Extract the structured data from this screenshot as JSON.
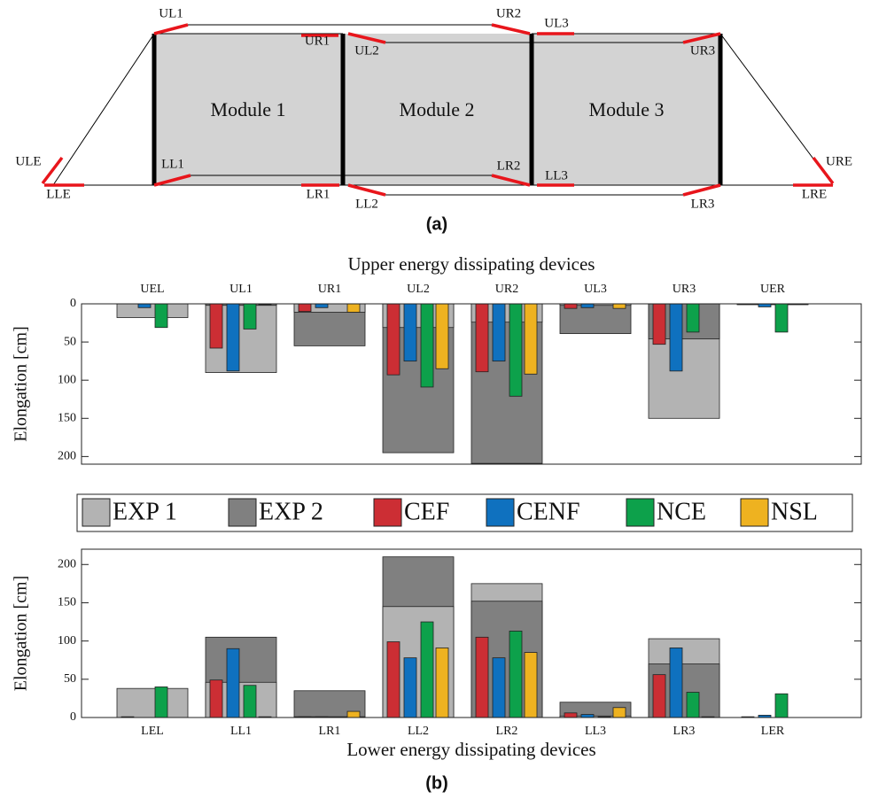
{
  "diagram": {
    "modules": [
      "Module 1",
      "Module 2",
      "Module 3"
    ],
    "devices": [
      "UL1",
      "UR1",
      "UL2",
      "UR2",
      "UL3",
      "UR3",
      "ULE",
      "LLE",
      "LL1",
      "LR1",
      "LL2",
      "LR2",
      "LL3",
      "LR3",
      "URE",
      "LRE"
    ],
    "caption": "(a)"
  },
  "caption_b": "(b)",
  "chart_data": [
    {
      "type": "bar",
      "title": "Upper energy dissipating devices",
      "y_label": "Elongation [cm]",
      "categories": [
        "UEL",
        "UL1",
        "UR1",
        "UL2",
        "UR2",
        "UL3",
        "UR3",
        "UER"
      ],
      "ylim": [
        0,
        210
      ],
      "yticks": [
        0,
        50,
        100,
        150,
        200
      ],
      "y_inverted": true,
      "category_labels": "top",
      "legend": true,
      "series": [
        {
          "name": "EXP 1",
          "color": "#b3b3b3",
          "values": [
            18,
            90,
            11,
            31,
            24,
            2,
            150,
            1
          ]
        },
        {
          "name": "EXP 2",
          "color": "#808080",
          "values": [
            0,
            2,
            55,
            195,
            209,
            39,
            46,
            1
          ]
        },
        {
          "name": "CEF",
          "color": "#cc2e34",
          "values": [
            0,
            58,
            10,
            93,
            89,
            6,
            53,
            0
          ]
        },
        {
          "name": "CENF",
          "color": "#0f71bf",
          "values": [
            5,
            88,
            5,
            75,
            75,
            5,
            88,
            4
          ]
        },
        {
          "name": "NCE",
          "color": "#0da14b",
          "values": [
            31,
            33,
            0,
            109,
            121,
            0,
            37,
            37
          ]
        },
        {
          "name": "NSL",
          "color": "#eeb220",
          "values": [
            0,
            1,
            11,
            85,
            92,
            6,
            0,
            0
          ]
        }
      ]
    },
    {
      "type": "bar",
      "x_label": "Lower energy dissipating devices",
      "y_label": "Elongation [cm]",
      "categories": [
        "LEL",
        "LL1",
        "LR1",
        "LL2",
        "LR2",
        "LL3",
        "LR3",
        "LER"
      ],
      "ylim": [
        0,
        220
      ],
      "yticks": [
        0,
        50,
        100,
        150,
        200
      ],
      "y_inverted": false,
      "category_labels": "bottom",
      "legend": false,
      "series": [
        {
          "color": "#b3b3b3",
          "values": [
            38,
            46,
            1,
            145,
            175,
            2,
            103,
            0
          ]
        },
        {
          "color": "#808080",
          "values": [
            0,
            105,
            35,
            210,
            152,
            20,
            70,
            0
          ]
        },
        {
          "color": "#cc2e34",
          "values": [
            1,
            49,
            1,
            99,
            105,
            6,
            56,
            1
          ]
        },
        {
          "color": "#0f71bf",
          "values": [
            0,
            90,
            1,
            78,
            78,
            4,
            91,
            3
          ]
        },
        {
          "color": "#0da14b",
          "values": [
            40,
            42,
            0,
            125,
            113,
            1,
            33,
            31
          ]
        },
        {
          "color": "#eeb220",
          "values": [
            0,
            1,
            8,
            91,
            85,
            13,
            1,
            0
          ]
        }
      ]
    }
  ]
}
